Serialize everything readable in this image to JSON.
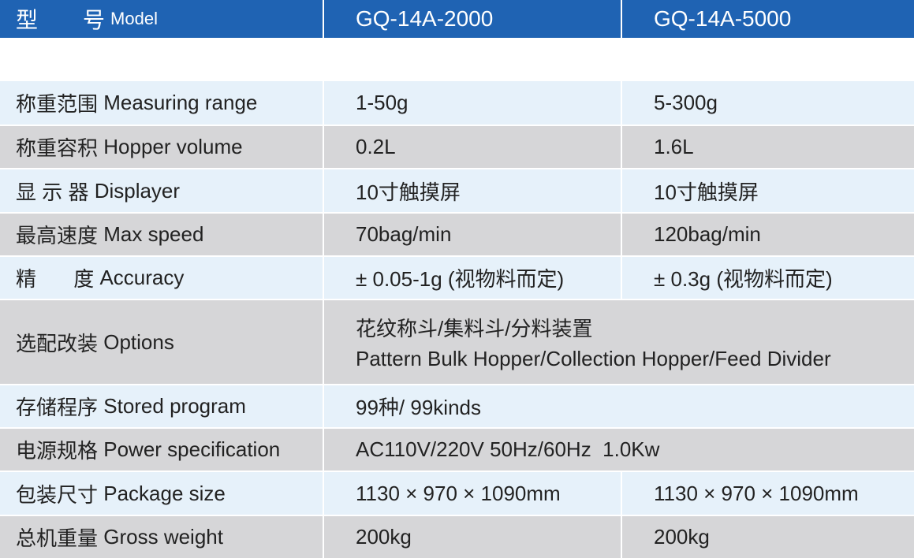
{
  "header": {
    "label_cn": "型 号",
    "label_cn_a": "型",
    "label_cn_b": "号",
    "label_en": "Model",
    "col1": "GQ-14A-2000",
    "col2": "GQ-14A-5000"
  },
  "rows": [
    {
      "label_cn": "称重范围",
      "label_en": "Measuring range",
      "v1": "1-50g",
      "v2": "5-300g"
    },
    {
      "label_cn": "称重容积",
      "label_en": "Hopper volume",
      "v1": "0.2L",
      "v2": "1.6L"
    },
    {
      "label_cn": "显 示 器",
      "label_en": "Displayer",
      "v1": "10寸触摸屏",
      "v2": "10寸触摸屏"
    },
    {
      "label_cn": "最高速度",
      "label_en": "Max speed",
      "v1": "70bag/min",
      "v2": "120bag/min"
    },
    {
      "label_cn": "精 度",
      "label_en": "Accuracy",
      "v1": "± 0.05-1g (视物料而定)",
      "v2": "± 0.3g (视物料而定)"
    },
    {
      "label_cn": "选配改装",
      "label_en": "Options",
      "v_line1": "花纹称斗/集料斗/分料装置",
      "v_line2": "Pattern Bulk Hopper/Collection Hopper/Feed Divider"
    },
    {
      "label_cn": "存储程序",
      "label_en": "Stored program",
      "v": "99种/ 99kinds"
    },
    {
      "label_cn": "电源规格",
      "label_en": "Power specification",
      "v": "AC110V/220V 50Hz/60Hz  1.0Kw"
    },
    {
      "label_cn": "包装尺寸",
      "label_en": "Package size",
      "v1": "1130 × 970 × 1090mm",
      "v2": "1130 × 970 × 1090mm"
    },
    {
      "label_cn": "总机重量",
      "label_en": "Gross weight",
      "v1": "200kg",
      "v2": "200kg"
    }
  ],
  "colors": {
    "header_bg": "#1f63b3",
    "row_light": "#e6f1fa",
    "row_grey": "#d6d6d8"
  }
}
